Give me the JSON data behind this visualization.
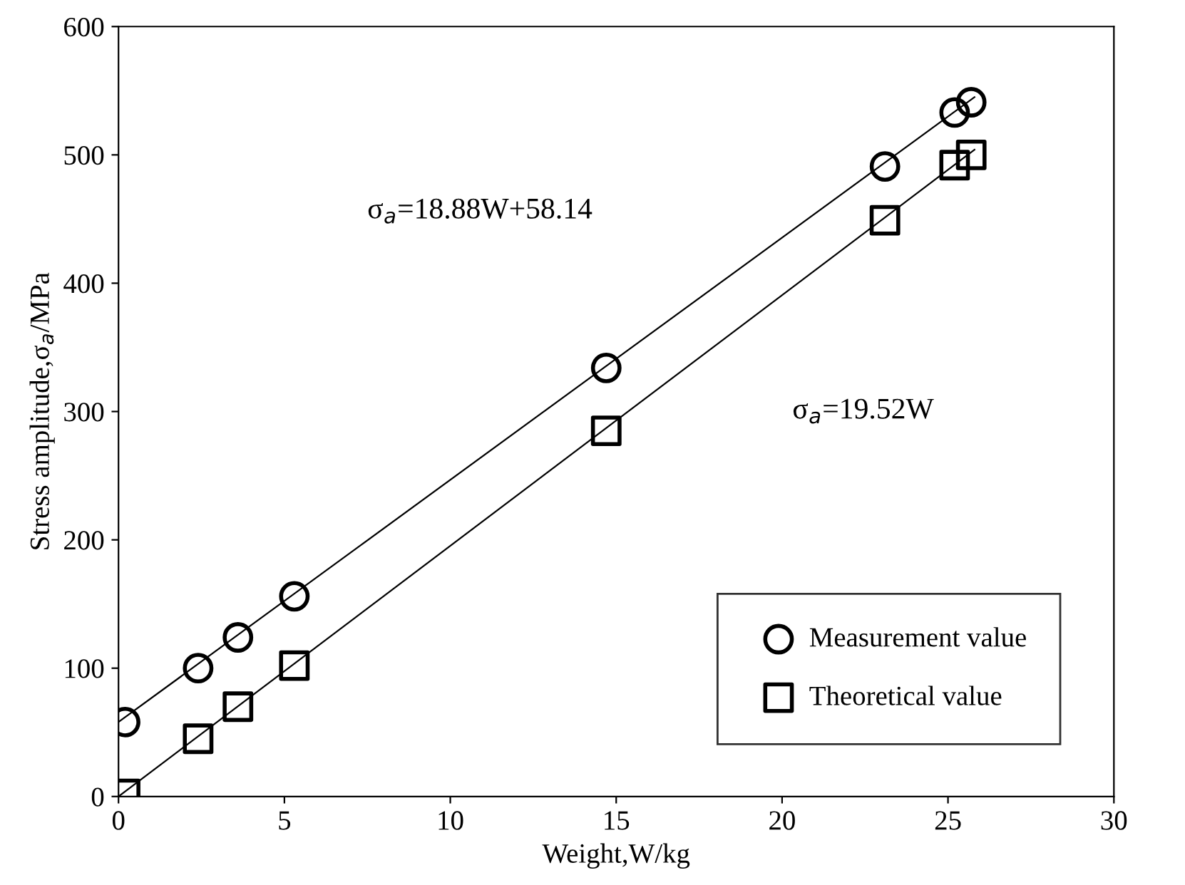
{
  "chart_data": {
    "type": "scatter",
    "xlabel": "Weight,W/kg",
    "ylabel": "Stress amplitude,σ$_{a}$/MPa",
    "xlim": [
      0,
      30
    ],
    "ylim": [
      0,
      600
    ],
    "xticks": [
      0,
      5,
      10,
      15,
      20,
      25,
      30
    ],
    "yticks": [
      0,
      100,
      200,
      300,
      400,
      500,
      600
    ],
    "grid": false,
    "legend": "bottom right",
    "series": [
      {
        "name": "Measurement value",
        "marker": "circle",
        "color": "#000000",
        "x": [
          0.2,
          2.4,
          3.6,
          5.3,
          14.7,
          23.1,
          25.2,
          25.7
        ],
        "values": [
          58,
          100,
          124,
          156,
          334,
          491,
          533,
          541
        ]
      },
      {
        "name": "Theoretical value",
        "marker": "square",
        "color": "#000000",
        "x": [
          0.2,
          2.4,
          3.6,
          5.3,
          14.7,
          23.1,
          25.2,
          25.7
        ],
        "values": [
          2,
          45,
          70,
          102,
          285,
          449,
          492,
          500
        ]
      },
      {
        "type": "line",
        "color": "#000000",
        "x": [
          0,
          25.8
        ],
        "values": [
          58,
          545
        ]
      },
      {
        "type": "line",
        "color": "#000000",
        "x": [
          0,
          25.8
        ],
        "values": [
          0,
          504
        ]
      }
    ],
    "annotations": [
      "σ$_{a}$=18.88W+58.14",
      "σ$_{a}$=19.52W"
    ]
  }
}
